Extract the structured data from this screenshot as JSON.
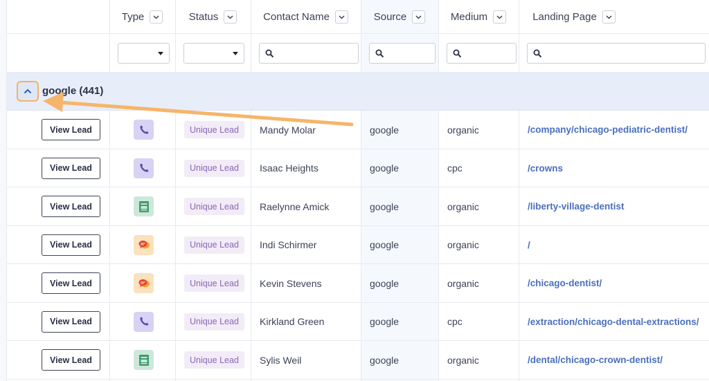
{
  "columns": [
    {
      "key": "type",
      "label": "Type"
    },
    {
      "key": "status",
      "label": "Status"
    },
    {
      "key": "contact",
      "label": "Contact Name"
    },
    {
      "key": "source",
      "label": "Source"
    },
    {
      "key": "medium",
      "label": "Medium"
    },
    {
      "key": "landing",
      "label": "Landing Page"
    }
  ],
  "group": {
    "label": "google (441)"
  },
  "view_lead_label": "View Lead",
  "icons": {
    "phone": "phone-icon",
    "form": "form-icon",
    "chat": "chat-icon"
  },
  "colors": {
    "landing_link": "#4a6fbd",
    "status_text": "#8a66b5",
    "highlight": "#f4b35e"
  },
  "rows": [
    {
      "type": "phone",
      "status": "Unique Lead",
      "contact": "Mandy Molar",
      "source": "google",
      "medium": "organic",
      "landing": "/company/chicago-pediatric-dentist/"
    },
    {
      "type": "phone",
      "status": "Unique Lead",
      "contact": "Isaac Heights",
      "source": "google",
      "medium": "cpc",
      "landing": "/crowns"
    },
    {
      "type": "form",
      "status": "Unique Lead",
      "contact": "Raelynne Amick",
      "source": "google",
      "medium": "organic",
      "landing": "/liberty-village-dentist"
    },
    {
      "type": "chat",
      "status": "Unique Lead",
      "contact": "Indi Schirmer",
      "source": "google",
      "medium": "organic",
      "landing": "/"
    },
    {
      "type": "chat",
      "status": "Unique Lead",
      "contact": "Kevin Stevens",
      "source": "google",
      "medium": "organic",
      "landing": "/chicago-dentist/"
    },
    {
      "type": "phone",
      "status": "Unique Lead",
      "contact": "Kirkland Green",
      "source": "google",
      "medium": "cpc",
      "landing": "/extraction/chicago-dental-extractions/"
    },
    {
      "type": "form",
      "status": "Unique Lead",
      "contact": "Sylis Weil",
      "source": "google",
      "medium": "organic",
      "landing": "/dental/chicago-crown-dentist/"
    }
  ]
}
